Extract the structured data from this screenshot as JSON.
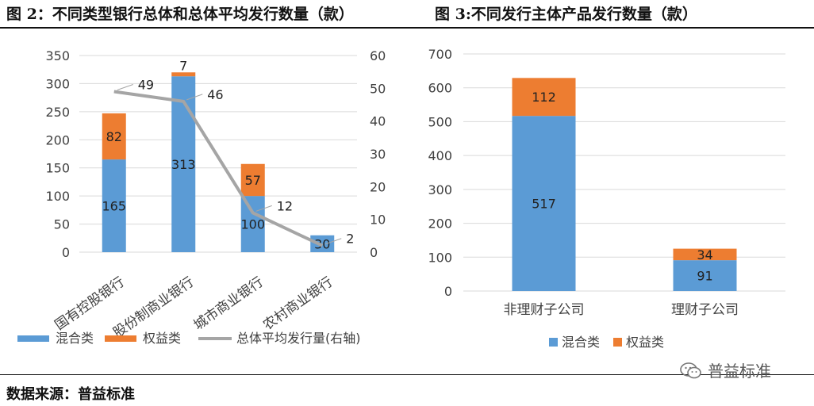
{
  "titles": {
    "left": "图 2：不同类型银行总体和总体平均发行数量（款）",
    "right": "图 3:不同发行主体产品发行数量（款）"
  },
  "source": "数据来源：普益标准",
  "watermark": "普益标准",
  "colors": {
    "blue": "#5B9BD5",
    "orange": "#ED7D31",
    "gray": "#A5A5A5"
  },
  "chart_data": [
    {
      "type": "bar",
      "stacked": true,
      "categories": [
        "国有控股银行",
        "股份制商业银行",
        "城市商业银行",
        "农村商业银行"
      ],
      "series": [
        {
          "name": "混合类",
          "values": [
            165,
            313,
            100,
            30
          ],
          "color": "#5B9BD5",
          "axis": "left"
        },
        {
          "name": "权益类",
          "values": [
            82,
            7,
            57,
            0
          ],
          "color": "#ED7D31",
          "axis": "left"
        },
        {
          "name": "总体平均发行量(右轴)",
          "type": "line",
          "values": [
            49,
            46,
            12,
            2
          ],
          "color": "#A5A5A5",
          "axis": "right"
        }
      ],
      "ylim": [
        0,
        350
      ],
      "yticks": [
        0,
        50,
        100,
        150,
        200,
        250,
        300,
        350
      ],
      "y2lim": [
        0,
        60
      ],
      "y2ticks": [
        0,
        10,
        20,
        30,
        40,
        50,
        60
      ],
      "grid": true,
      "legend": "bottom"
    },
    {
      "type": "bar",
      "stacked": true,
      "categories": [
        "非理财子公司",
        "理财子公司"
      ],
      "series": [
        {
          "name": "混合类",
          "values": [
            517,
            91
          ],
          "color": "#5B9BD5"
        },
        {
          "name": "权益类",
          "values": [
            112,
            34
          ],
          "color": "#ED7D31"
        }
      ],
      "ylim": [
        0,
        700
      ],
      "yticks": [
        0,
        100,
        200,
        300,
        400,
        500,
        600,
        700
      ],
      "grid": true,
      "legend": "bottom"
    }
  ]
}
